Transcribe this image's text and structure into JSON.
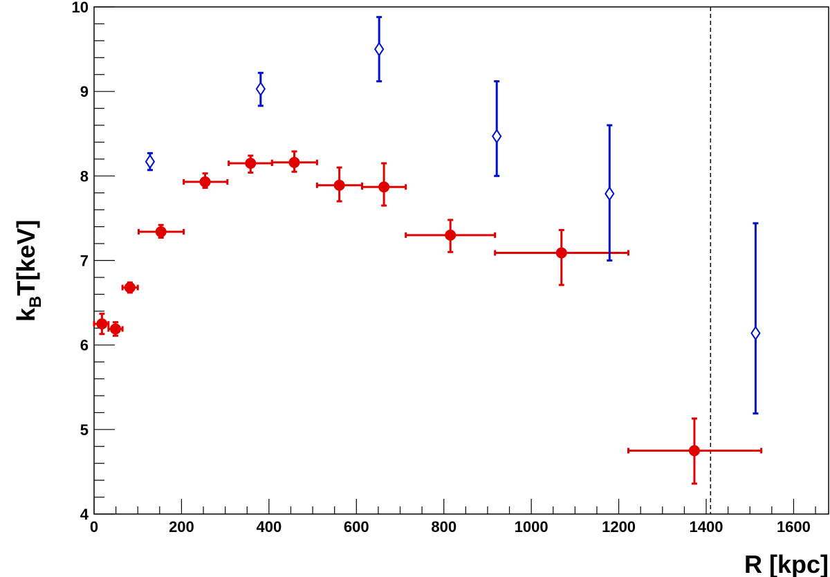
{
  "chart_data": {
    "type": "scatter",
    "title": "",
    "xlabel": "R [kpc]",
    "ylabel_main": "k",
    "ylabel_sub": "B",
    "ylabel_rest": "T[keV]",
    "xlim": [
      0,
      1680
    ],
    "ylim": [
      4,
      10
    ],
    "x_major_ticks": [
      0,
      200,
      400,
      600,
      800,
      1000,
      1200,
      1400,
      1600
    ],
    "x_tick_labels": [
      "0",
      "200",
      "400",
      "600",
      "800",
      "1000",
      "1200",
      "1400",
      "1600"
    ],
    "y_major_ticks": [
      4,
      5,
      6,
      7,
      8,
      9,
      10
    ],
    "y_tick_labels": [
      "4",
      "5",
      "6",
      "7",
      "8",
      "9",
      "10"
    ],
    "x_minor_step": 50,
    "y_minor_step": 0.2,
    "grid": false,
    "reference_line_x": 1410,
    "series": [
      {
        "marker": "filled-circle",
        "color": "#e00000",
        "points": [
          {
            "x": 18,
            "y": 6.25,
            "xlo": 0,
            "xhi": 33,
            "ylo": 6.13,
            "yhi": 6.37
          },
          {
            "x": 49,
            "y": 6.19,
            "xlo": 33,
            "xhi": 65,
            "ylo": 6.11,
            "yhi": 6.27
          },
          {
            "x": 82,
            "y": 6.68,
            "xlo": 65,
            "xhi": 100,
            "ylo": 6.62,
            "yhi": 6.74
          },
          {
            "x": 153,
            "y": 7.34,
            "xlo": 102,
            "xhi": 205,
            "ylo": 7.27,
            "yhi": 7.42
          },
          {
            "x": 254,
            "y": 7.93,
            "xlo": 205,
            "xhi": 305,
            "ylo": 7.86,
            "yhi": 8.03
          },
          {
            "x": 358,
            "y": 8.15,
            "xlo": 308,
            "xhi": 407,
            "ylo": 8.04,
            "yhi": 8.24
          },
          {
            "x": 458,
            "y": 8.16,
            "xlo": 407,
            "xhi": 510,
            "ylo": 8.05,
            "yhi": 8.29
          },
          {
            "x": 561,
            "y": 7.89,
            "xlo": 510,
            "xhi": 613,
            "ylo": 7.7,
            "yhi": 8.1
          },
          {
            "x": 663,
            "y": 7.87,
            "xlo": 613,
            "xhi": 713,
            "ylo": 7.65,
            "yhi": 8.15
          },
          {
            "x": 815,
            "y": 7.3,
            "xlo": 713,
            "xhi": 917,
            "ylo": 7.1,
            "yhi": 7.48
          },
          {
            "x": 1069,
            "y": 7.09,
            "xlo": 917,
            "xhi": 1222,
            "ylo": 6.71,
            "yhi": 7.36
          },
          {
            "x": 1373,
            "y": 4.75,
            "xlo": 1222,
            "xhi": 1526,
            "ylo": 4.36,
            "yhi": 5.13
          }
        ]
      },
      {
        "marker": "open-diamond",
        "color": "#0010cc",
        "points": [
          {
            "x": 128,
            "y": 8.17,
            "ylo": 8.07,
            "yhi": 8.27
          },
          {
            "x": 381,
            "y": 9.03,
            "ylo": 8.83,
            "yhi": 9.22
          },
          {
            "x": 652,
            "y": 9.5,
            "ylo": 9.12,
            "yhi": 9.88
          },
          {
            "x": 921,
            "y": 8.47,
            "ylo": 8.0,
            "yhi": 9.12
          },
          {
            "x": 1179,
            "y": 7.79,
            "ylo": 7.0,
            "yhi": 8.6
          },
          {
            "x": 1513,
            "y": 6.14,
            "ylo": 5.19,
            "yhi": 7.44
          }
        ]
      }
    ]
  }
}
